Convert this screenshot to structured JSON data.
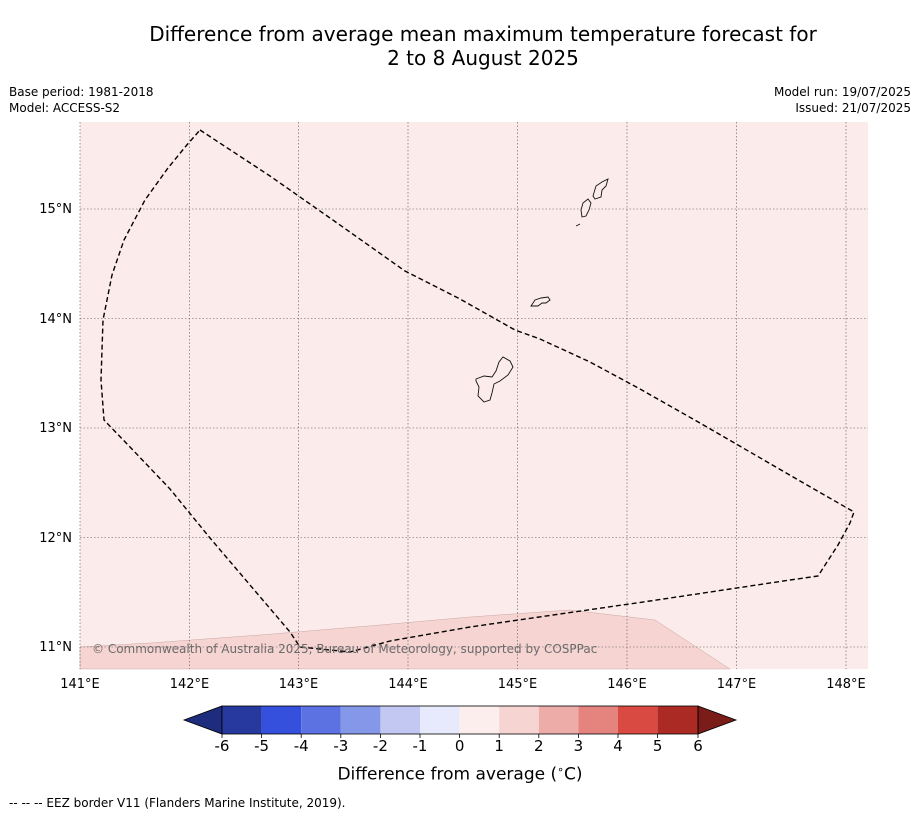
{
  "title_line1": "Difference from average mean maximum temperature forecast for",
  "title_line2": "2 to 8 August 2025",
  "base_period": "Base period: 1981-2018",
  "model": "Model: ACCESS-S2",
  "model_run": "Model run: 19/07/2025",
  "issued": "Issued: 21/07/2025",
  "lat_labels": [
    "15°N",
    "14°N",
    "13°N",
    "12°N",
    "11°N"
  ],
  "lon_labels": [
    "141°E",
    "142°E",
    "143°E",
    "144°E",
    "145°E",
    "146°E",
    "147°E",
    "148°E"
  ],
  "copyright": "© Commonwealth of Australia 2025, Bureau of Meteorology, supported by COSPPac",
  "colorbar": {
    "ticks": [
      "-6",
      "-5",
      "-4",
      "-3",
      "-2",
      "-1",
      "0",
      "1",
      "2",
      "3",
      "4",
      "5",
      "6"
    ],
    "label_text": "Difference from average (",
    "label_degree": "∘",
    "label_unit": "C)",
    "colors": [
      "#27389e",
      "#3450dc",
      "#5c72e2",
      "#8597e8",
      "#c2c8f2",
      "#e6eafc",
      "#fbeeec",
      "#f6d4d2",
      "#eeaca8",
      "#e5847e",
      "#d84a42",
      "#ac2a24"
    ],
    "under_color": "#1d2c7c",
    "over_color": "#7a1c18"
  },
  "footer": "--  --  -- EEZ border V11 (Flanders Marine Institute, 2019).",
  "map_colors": {
    "background": "#fbebea",
    "warmer_zone": "#f6d4d2"
  }
}
